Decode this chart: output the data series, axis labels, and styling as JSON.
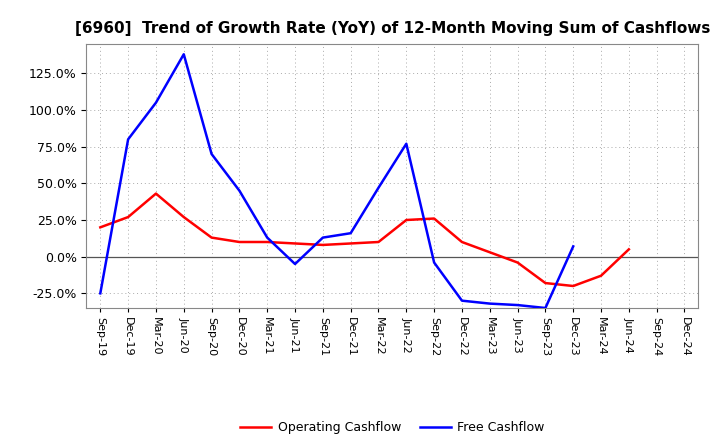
{
  "title": "[6960]  Trend of Growth Rate (YoY) of 12-Month Moving Sum of Cashflows",
  "labels": [
    "Sep-19",
    "Dec-19",
    "Mar-20",
    "Jun-20",
    "Sep-20",
    "Dec-20",
    "Mar-21",
    "Jun-21",
    "Sep-21",
    "Dec-21",
    "Mar-22",
    "Jun-22",
    "Sep-22",
    "Dec-22",
    "Mar-23",
    "Jun-23",
    "Sep-23",
    "Dec-23",
    "Mar-24",
    "Jun-24",
    "Sep-24",
    "Dec-24"
  ],
  "operating_cashflow": [
    0.2,
    0.27,
    0.43,
    0.27,
    0.13,
    0.1,
    0.1,
    0.09,
    0.08,
    0.09,
    0.1,
    0.25,
    0.26,
    0.1,
    0.03,
    -0.04,
    -0.18,
    -0.2,
    -0.13,
    0.05,
    null,
    null
  ],
  "free_cashflow": [
    -0.25,
    0.8,
    1.05,
    1.38,
    0.7,
    0.45,
    0.13,
    -0.05,
    0.13,
    0.16,
    0.47,
    0.77,
    -0.04,
    -0.3,
    -0.32,
    -0.33,
    -0.35,
    0.07,
    null,
    null,
    null,
    null
  ],
  "ylim": [
    -0.35,
    1.45
  ],
  "yticks": [
    -0.25,
    0.0,
    0.25,
    0.5,
    0.75,
    1.0,
    1.25
  ],
  "operating_color": "#FF0000",
  "free_color": "#0000FF",
  "background_color": "#FFFFFF",
  "grid_color": "#AAAAAA",
  "legend_labels": [
    "Operating Cashflow",
    "Free Cashflow"
  ]
}
